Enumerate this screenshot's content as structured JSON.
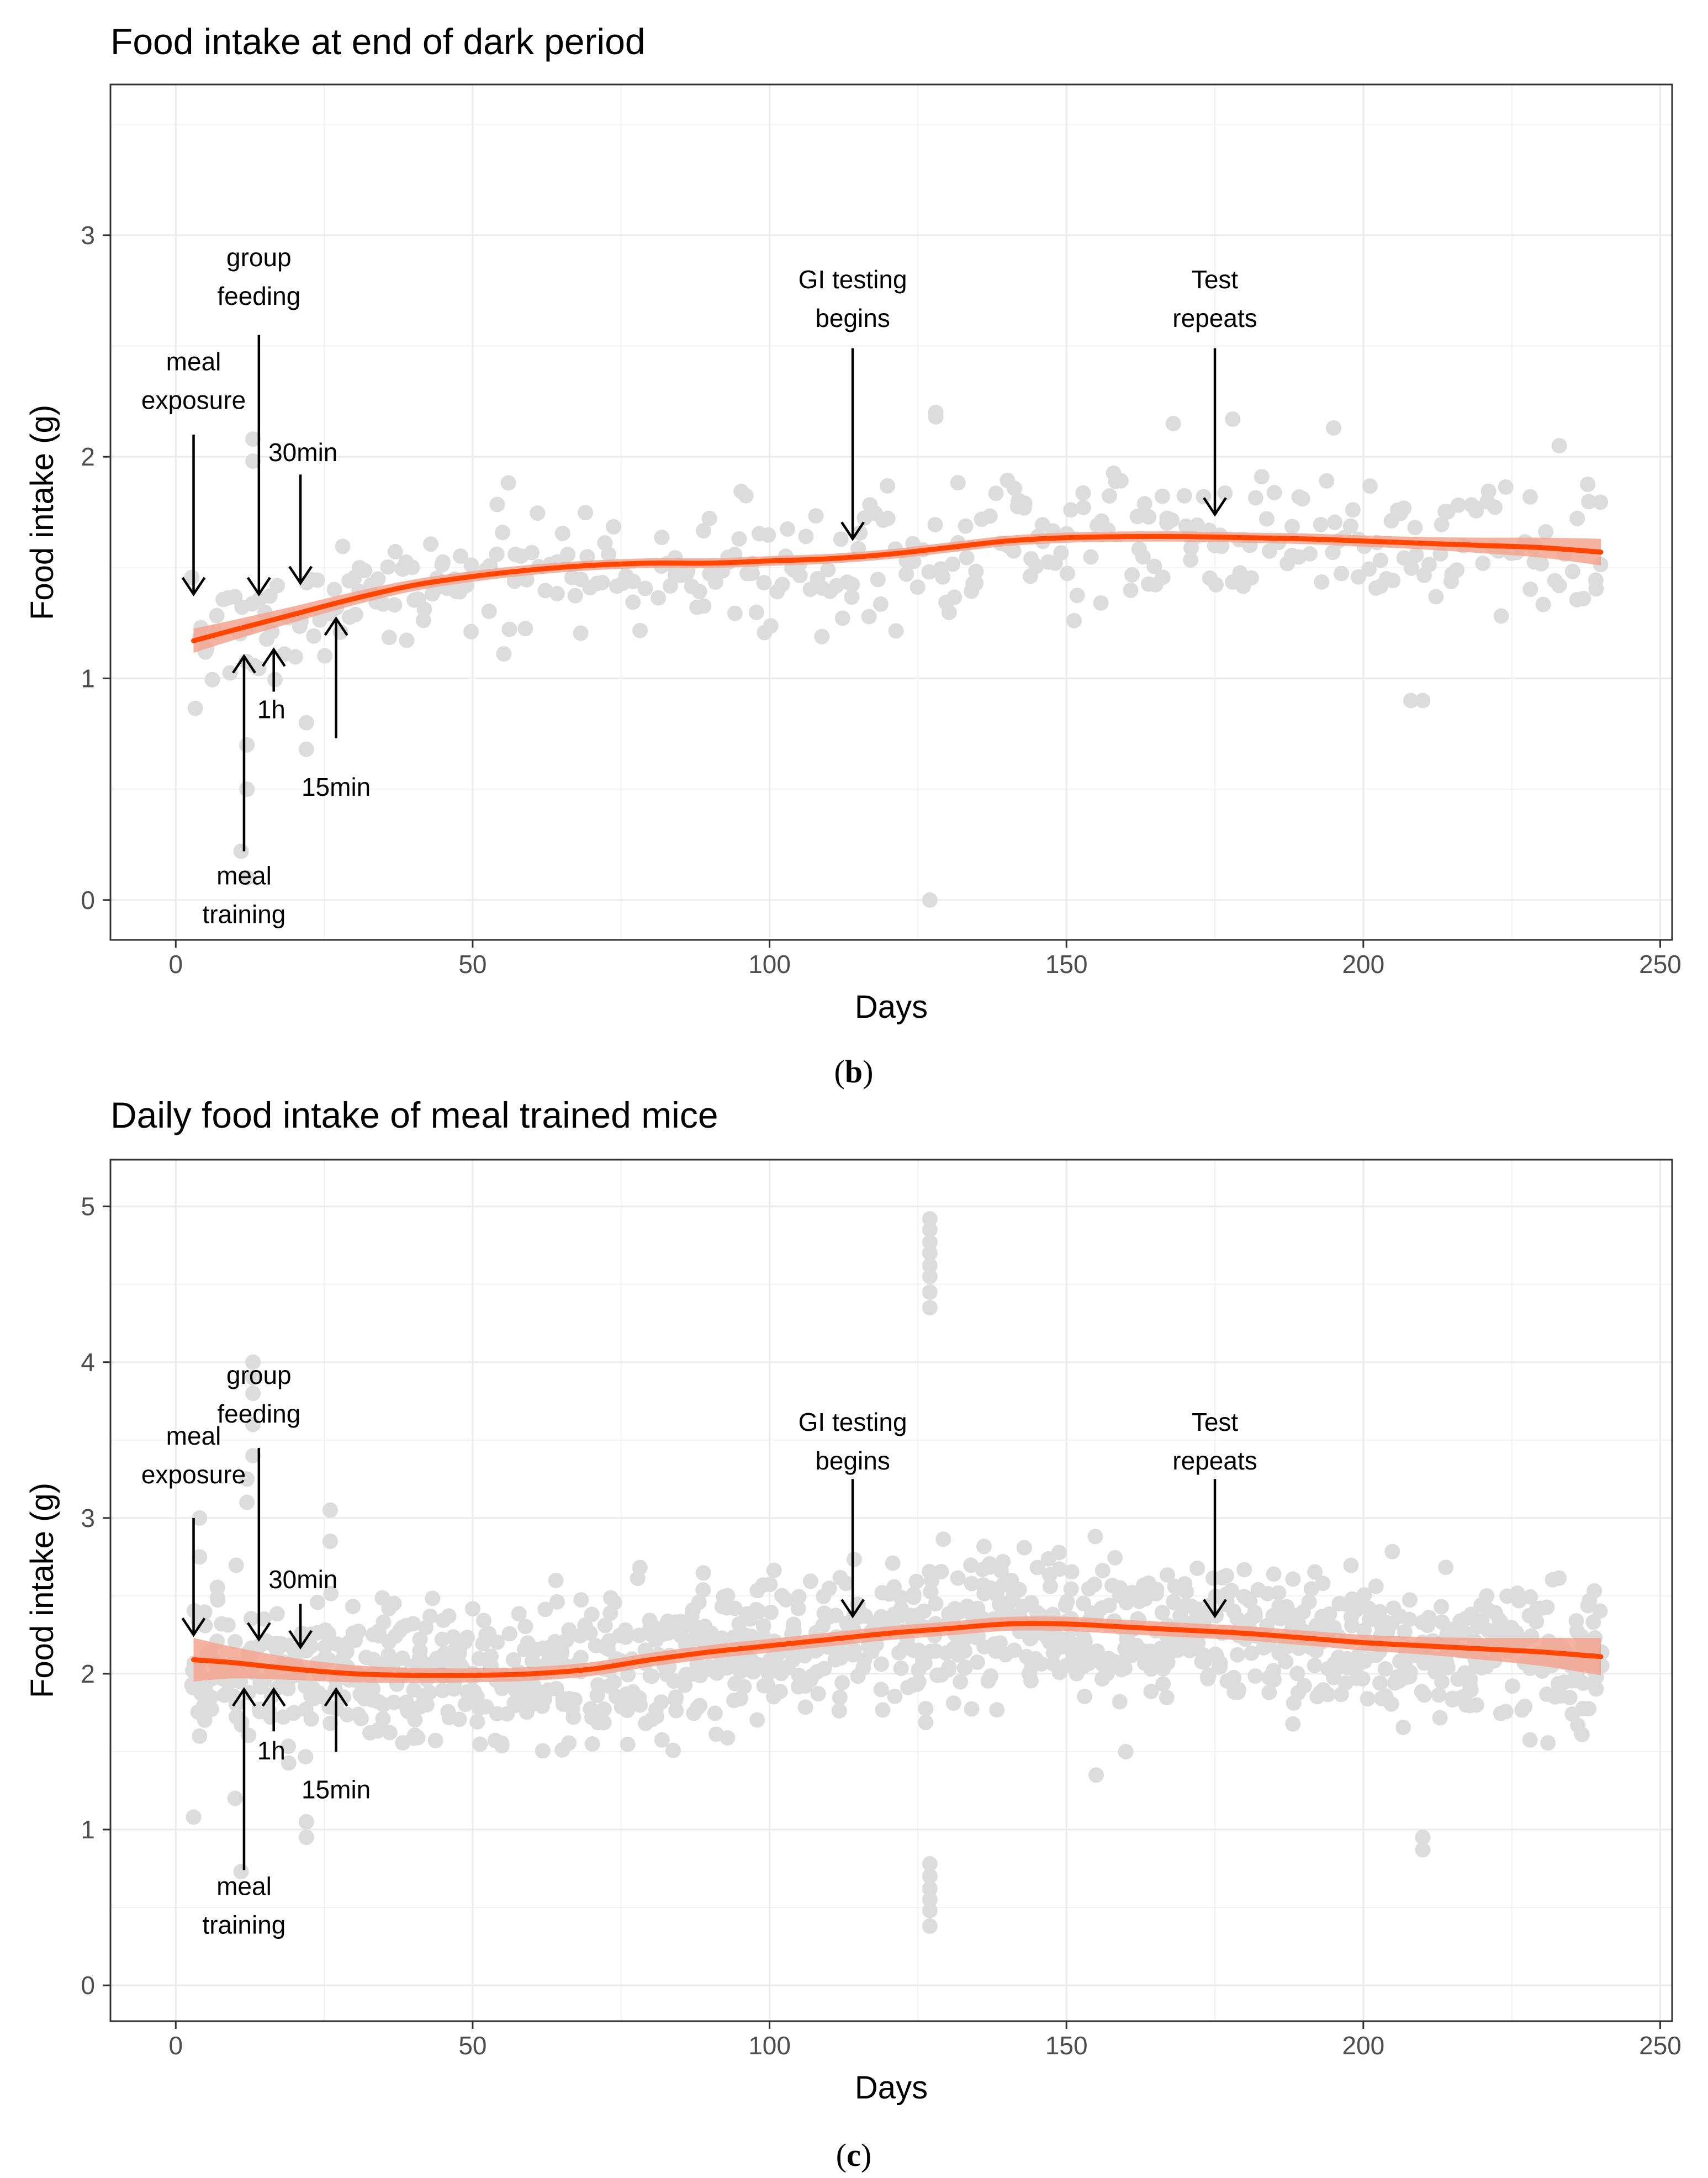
{
  "chart_data": [
    {
      "type": "scatter",
      "title": "Food intake at end of dark period",
      "xlabel": "Days",
      "ylabel": "Food intake (g)",
      "xlim": [
        -11,
        252
      ],
      "ylim": [
        -0.18,
        3.68
      ],
      "xticks": [
        0,
        50,
        100,
        150,
        200,
        250
      ],
      "yticks": [
        0,
        1,
        2,
        3
      ],
      "caption_letter": "b",
      "point_color": "#dcdcdc",
      "smooth_color": "#ff4500",
      "band_color": "#f4a591",
      "smooth": {
        "x": [
          3,
          10,
          20,
          30,
          40,
          50,
          60,
          70,
          80,
          90,
          100,
          110,
          120,
          130,
          140,
          150,
          160,
          170,
          180,
          190,
          200,
          210,
          220,
          230,
          240
        ],
        "y": [
          1.17,
          1.22,
          1.29,
          1.36,
          1.42,
          1.46,
          1.49,
          1.51,
          1.52,
          1.52,
          1.53,
          1.54,
          1.56,
          1.59,
          1.62,
          1.635,
          1.64,
          1.64,
          1.635,
          1.63,
          1.62,
          1.61,
          1.6,
          1.59,
          1.57
        ],
        "se": [
          0.055,
          0.045,
          0.036,
          0.03,
          0.026,
          0.024,
          0.023,
          0.022,
          0.022,
          0.022,
          0.022,
          0.022,
          0.022,
          0.023,
          0.023,
          0.023,
          0.023,
          0.023,
          0.023,
          0.024,
          0.025,
          0.028,
          0.035,
          0.045,
          0.06
        ]
      },
      "scatter_seed": 7,
      "scatter_spread": 0.2,
      "scatter_per_day": 2,
      "outliers": [
        {
          "x": 127,
          "y": 0
        },
        {
          "x": 12,
          "y": 0.1
        },
        {
          "x": 11,
          "y": 0.22
        },
        {
          "x": 12,
          "y": 0.5
        },
        {
          "x": 12,
          "y": 0.7
        },
        {
          "x": 22,
          "y": 0.68
        },
        {
          "x": 22,
          "y": 0.8
        },
        {
          "x": 13,
          "y": 2.08
        },
        {
          "x": 13,
          "y": 1.98
        },
        {
          "x": 128,
          "y": 2.2
        },
        {
          "x": 128,
          "y": 2.18
        },
        {
          "x": 168,
          "y": 2.15
        },
        {
          "x": 178,
          "y": 2.17
        },
        {
          "x": 208,
          "y": 0.9
        },
        {
          "x": 210,
          "y": 0.9
        },
        {
          "x": 233,
          "y": 2.05
        },
        {
          "x": 195,
          "y": 2.13
        }
      ],
      "annotations": [
        {
          "lines": [
            "meal",
            "exposure"
          ],
          "x": 3,
          "text_y": 2.39,
          "from_y": 2.1,
          "to_y": 1.38,
          "dir": "down",
          "anchor": "middle",
          "text_dx": 0
        },
        {
          "lines": [
            "group",
            "feeding"
          ],
          "x": 14,
          "text_y": 2.86,
          "from_y": 2.55,
          "to_y": 1.38,
          "dir": "down",
          "anchor": "middle",
          "text_dx": 0
        },
        {
          "lines": [
            "30min"
          ],
          "x": 21,
          "text_y": 1.98,
          "from_y": 1.92,
          "to_y": 1.43,
          "dir": "down",
          "anchor": "start",
          "text_dx": -58
        },
        {
          "lines": [
            "1h"
          ],
          "x": 16.5,
          "text_y": 0.82,
          "from_y": 0.94,
          "to_y": 1.13,
          "dir": "up",
          "anchor": "start",
          "text_dx": -30
        },
        {
          "lines": [
            "15min"
          ],
          "x": 27,
          "text_y": 0.47,
          "from_y": 0.73,
          "to_y": 1.27,
          "dir": "up",
          "anchor": "middle",
          "text_dx": 0
        },
        {
          "lines": [
            "meal",
            "training"
          ],
          "x": 11.5,
          "text_y": 0.07,
          "from_y": 0.22,
          "to_y": 1.1,
          "dir": "up",
          "anchor": "middle",
          "text_dx": 0
        },
        {
          "lines": [
            "GI testing",
            "begins"
          ],
          "x": 114,
          "text_y": 2.76,
          "from_y": 2.49,
          "to_y": 1.63,
          "dir": "down",
          "anchor": "middle",
          "text_dx": 0
        },
        {
          "lines": [
            "Test",
            "repeats"
          ],
          "x": 175,
          "text_y": 2.76,
          "from_y": 2.49,
          "to_y": 1.74,
          "dir": "down",
          "anchor": "middle",
          "text_dx": 0
        }
      ]
    },
    {
      "type": "scatter",
      "title": "Daily food intake of meal trained mice",
      "xlabel": "Days",
      "ylabel": "Food intake (g)",
      "xlim": [
        -11,
        252
      ],
      "ylim": [
        -0.23,
        5.3
      ],
      "xticks": [
        0,
        50,
        100,
        150,
        200,
        250
      ],
      "yticks": [
        0,
        1,
        2,
        3,
        4,
        5
      ],
      "caption_letter": "c",
      "point_color": "#dcdcdc",
      "smooth_color": "#ff4500",
      "band_color": "#f4a591",
      "smooth": {
        "x": [
          3,
          10,
          20,
          30,
          40,
          50,
          60,
          70,
          80,
          90,
          100,
          110,
          120,
          130,
          140,
          150,
          160,
          170,
          180,
          190,
          200,
          210,
          220,
          230,
          240
        ],
        "y": [
          2.09,
          2.07,
          2.03,
          2.0,
          1.99,
          1.99,
          2.0,
          2.03,
          2.09,
          2.14,
          2.18,
          2.22,
          2.26,
          2.29,
          2.32,
          2.32,
          2.3,
          2.28,
          2.26,
          2.23,
          2.2,
          2.18,
          2.16,
          2.14,
          2.11
        ],
        "se": [
          0.14,
          0.1,
          0.07,
          0.055,
          0.048,
          0.045,
          0.044,
          0.044,
          0.044,
          0.044,
          0.044,
          0.044,
          0.044,
          0.044,
          0.045,
          0.046,
          0.046,
          0.046,
          0.046,
          0.047,
          0.05,
          0.056,
          0.07,
          0.09,
          0.12
        ]
      },
      "scatter_seed": 23,
      "scatter_spread": 0.3,
      "scatter_per_day": 6,
      "outliers": [
        {
          "x": 127,
          "y": 4.92
        },
        {
          "x": 127,
          "y": 4.85
        },
        {
          "x": 127,
          "y": 4.77
        },
        {
          "x": 127,
          "y": 4.7
        },
        {
          "x": 127,
          "y": 4.62
        },
        {
          "x": 127,
          "y": 4.55
        },
        {
          "x": 127,
          "y": 4.45
        },
        {
          "x": 127,
          "y": 4.35
        },
        {
          "x": 127,
          "y": 0.78
        },
        {
          "x": 127,
          "y": 0.7
        },
        {
          "x": 127,
          "y": 0.62
        },
        {
          "x": 127,
          "y": 0.55
        },
        {
          "x": 127,
          "y": 0.48
        },
        {
          "x": 127,
          "y": 0.38
        },
        {
          "x": 13,
          "y": 4.0
        },
        {
          "x": 13,
          "y": 3.9
        },
        {
          "x": 13,
          "y": 3.8
        },
        {
          "x": 13,
          "y": 3.6
        },
        {
          "x": 13,
          "y": 3.4
        },
        {
          "x": 12,
          "y": 3.25
        },
        {
          "x": 12,
          "y": 3.1
        },
        {
          "x": 4,
          "y": 3.0
        },
        {
          "x": 4,
          "y": 2.75
        },
        {
          "x": 26,
          "y": 3.05
        },
        {
          "x": 26,
          "y": 2.85
        },
        {
          "x": 10,
          "y": 1.2
        },
        {
          "x": 11,
          "y": 0.73
        },
        {
          "x": 3,
          "y": 1.08
        },
        {
          "x": 4,
          "y": 1.6
        },
        {
          "x": 22,
          "y": 0.95
        },
        {
          "x": 22,
          "y": 1.05
        },
        {
          "x": 210,
          "y": 0.87
        },
        {
          "x": 210,
          "y": 0.95
        },
        {
          "x": 160,
          "y": 1.5
        },
        {
          "x": 155,
          "y": 1.35
        }
      ],
      "annotations": [
        {
          "lines": [
            "meal",
            "exposure"
          ],
          "x": 3,
          "text_y": 3.47,
          "from_y": 3.0,
          "to_y": 2.25,
          "dir": "down",
          "anchor": "middle",
          "text_dx": 0
        },
        {
          "lines": [
            "group",
            "feeding"
          ],
          "x": 14,
          "text_y": 3.86,
          "from_y": 3.45,
          "to_y": 2.22,
          "dir": "down",
          "anchor": "middle",
          "text_dx": 0
        },
        {
          "lines": [
            "30min"
          ],
          "x": 21,
          "text_y": 2.55,
          "from_y": 2.45,
          "to_y": 2.17,
          "dir": "down",
          "anchor": "start",
          "text_dx": -58
        },
        {
          "lines": [
            "1h"
          ],
          "x": 16.5,
          "text_y": 1.45,
          "from_y": 1.63,
          "to_y": 1.9,
          "dir": "up",
          "anchor": "start",
          "text_dx": -30
        },
        {
          "lines": [
            "15min"
          ],
          "x": 27,
          "text_y": 1.2,
          "from_y": 1.5,
          "to_y": 1.9,
          "dir": "up",
          "anchor": "middle",
          "text_dx": 0
        },
        {
          "lines": [
            "meal",
            "training"
          ],
          "x": 11.5,
          "text_y": 0.58,
          "from_y": 0.74,
          "to_y": 1.9,
          "dir": "up",
          "anchor": "middle",
          "text_dx": 0
        },
        {
          "lines": [
            "GI testing",
            "begins"
          ],
          "x": 114,
          "text_y": 3.56,
          "from_y": 3.25,
          "to_y": 2.37,
          "dir": "down",
          "anchor": "middle",
          "text_dx": 0
        },
        {
          "lines": [
            "Test",
            "repeats"
          ],
          "x": 175,
          "text_y": 3.56,
          "from_y": 3.25,
          "to_y": 2.37,
          "dir": "down",
          "anchor": "middle",
          "text_dx": 0
        }
      ]
    }
  ]
}
